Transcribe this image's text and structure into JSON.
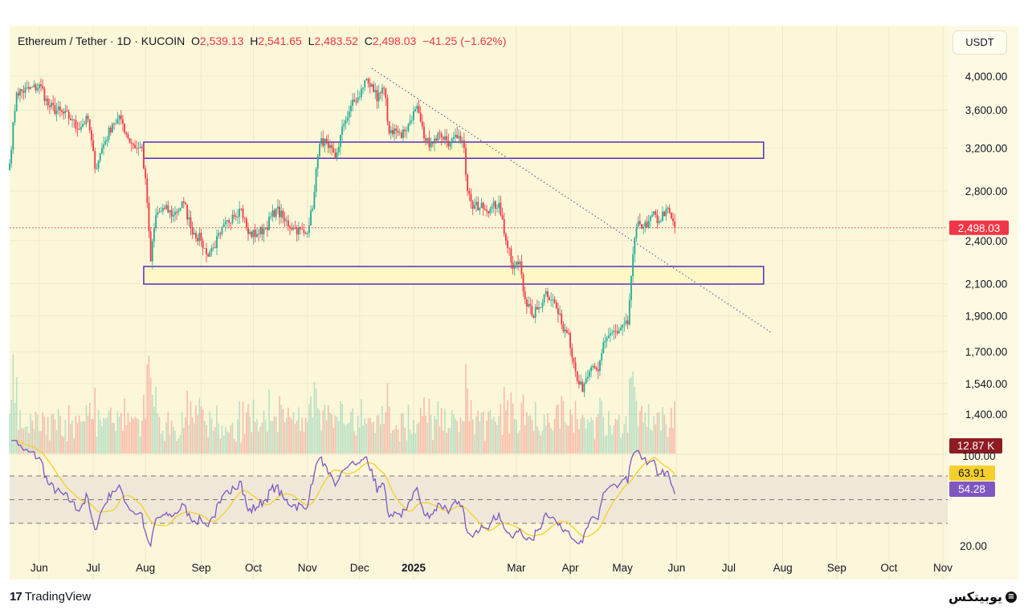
{
  "header": {
    "symbol": "Ethereum / Tether · 1D · KUCOIN",
    "o_label": "O",
    "o": "2,539.13",
    "h_label": "H",
    "h": "2,541.65",
    "l_label": "L",
    "l": "2,483.52",
    "c_label": "C",
    "c": "2,498.03",
    "change": "−41.25 (−1.62%)"
  },
  "currency": "USDT",
  "footer": {
    "logo_text": "TradingView",
    "brand": "یوبیتکس"
  },
  "colors": {
    "up": "#22ab94",
    "down": "#f23645",
    "rsi": "#7e57c2",
    "rsi_ma": "#f5d02b",
    "box": "#5b2bc4",
    "volume_badge": "#8e1c22"
  },
  "chart_data": {
    "type": "candlestick",
    "title": "Ethereum / Tether · 1D · KUCOIN",
    "scale": "log",
    "ylim": [
      1300,
      4200
    ],
    "y_ticks": [
      "4,000.00",
      "3,600.00",
      "3,200.00",
      "2,800.00",
      "2,400.00",
      "2,100.00",
      "1,900.00",
      "1,700.00",
      "1,540.00",
      "1,400.00"
    ],
    "y_tick_values": [
      4000,
      3600,
      3200,
      2800,
      2400,
      2100,
      1900,
      1700,
      1540,
      1400
    ],
    "x_ticks": [
      "Jun",
      "Jul",
      "Aug",
      "Sep",
      "Oct",
      "Nov",
      "Dec",
      "2025",
      "Mar",
      "Apr",
      "May",
      "Jun",
      "Jul",
      "Aug",
      "Sep",
      "Oct",
      "Nov"
    ],
    "x_tick_days": [
      17,
      48,
      78,
      110,
      140,
      171,
      201,
      232,
      291,
      322,
      352,
      383,
      413,
      444,
      475,
      505,
      536
    ],
    "close_keypoints_day_price": [
      [
        0,
        3050
      ],
      [
        4,
        3800
      ],
      [
        18,
        3880
      ],
      [
        22,
        3650
      ],
      [
        36,
        3500
      ],
      [
        38,
        3400
      ],
      [
        45,
        3500
      ],
      [
        49,
        3000
      ],
      [
        52,
        3150
      ],
      [
        59,
        3450
      ],
      [
        64,
        3500
      ],
      [
        68,
        3300
      ],
      [
        73,
        3200
      ],
      [
        76,
        3200
      ],
      [
        79,
        2700
      ],
      [
        81,
        2250
      ],
      [
        84,
        2600
      ],
      [
        89,
        2650
      ],
      [
        94,
        2600
      ],
      [
        100,
        2700
      ],
      [
        104,
        2500
      ],
      [
        110,
        2400
      ],
      [
        113,
        2300
      ],
      [
        117,
        2350
      ],
      [
        121,
        2450
      ],
      [
        128,
        2600
      ],
      [
        133,
        2650
      ],
      [
        137,
        2450
      ],
      [
        142,
        2450
      ],
      [
        147,
        2500
      ],
      [
        153,
        2650
      ],
      [
        158,
        2550
      ],
      [
        163,
        2500
      ],
      [
        170,
        2450
      ],
      [
        174,
        2650
      ],
      [
        176,
        3000
      ],
      [
        179,
        3300
      ],
      [
        183,
        3200
      ],
      [
        187,
        3100
      ],
      [
        192,
        3450
      ],
      [
        196,
        3650
      ],
      [
        201,
        3750
      ],
      [
        204,
        3950
      ],
      [
        208,
        3900
      ],
      [
        211,
        3700
      ],
      [
        215,
        3850
      ],
      [
        218,
        3350
      ],
      [
        221,
        3400
      ],
      [
        225,
        3300
      ],
      [
        229,
        3450
      ],
      [
        234,
        3650
      ],
      [
        238,
        3300
      ],
      [
        242,
        3250
      ],
      [
        247,
        3350
      ],
      [
        253,
        3250
      ],
      [
        257,
        3300
      ],
      [
        261,
        3200
      ],
      [
        263,
        2800
      ],
      [
        266,
        2650
      ],
      [
        271,
        2700
      ],
      [
        276,
        2650
      ],
      [
        281,
        2700
      ],
      [
        285,
        2400
      ],
      [
        289,
        2200
      ],
      [
        293,
        2250
      ],
      [
        296,
        2000
      ],
      [
        300,
        1900
      ],
      [
        304,
        1950
      ],
      [
        308,
        2050
      ],
      [
        312,
        2000
      ],
      [
        317,
        1850
      ],
      [
        321,
        1800
      ],
      [
        325,
        1600
      ],
      [
        329,
        1500
      ],
      [
        333,
        1600
      ],
      [
        338,
        1600
      ],
      [
        341,
        1750
      ],
      [
        345,
        1800
      ],
      [
        349,
        1800
      ],
      [
        355,
        1850
      ],
      [
        358,
        2300
      ],
      [
        361,
        2550
      ],
      [
        366,
        2500
      ],
      [
        369,
        2600
      ],
      [
        373,
        2550
      ],
      [
        377,
        2650
      ],
      [
        382,
        2498.03
      ]
    ],
    "last_price": "2,498.03",
    "volume_last": "12.87 K",
    "zones": [
      {
        "low": 3100,
        "high": 3260,
        "from_day": 77,
        "to_day": 433
      },
      {
        "low": 2097,
        "high": 2215,
        "from_day": 77,
        "to_day": 433
      }
    ],
    "trendline": {
      "from": [
        208,
        4100
      ],
      "to": [
        438,
        1800
      ]
    },
    "rsi": {
      "ticks": [
        "100.00",
        "20.00"
      ],
      "bands": [
        70,
        50,
        30
      ],
      "value": "54.28",
      "ma_value": "63.91"
    }
  }
}
